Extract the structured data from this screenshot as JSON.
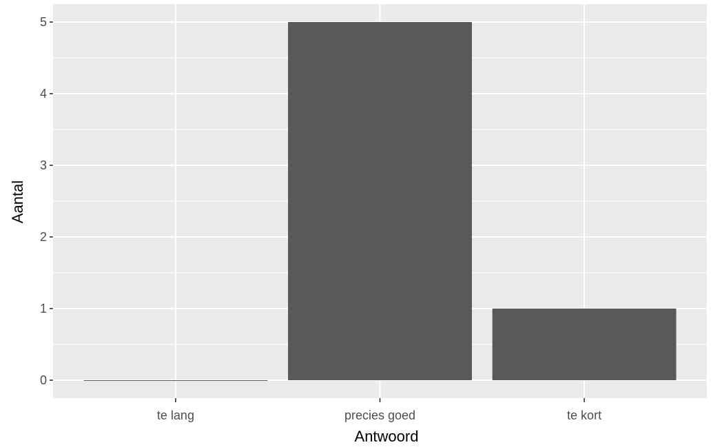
{
  "chart_data": {
    "type": "bar",
    "categories": [
      "te lang",
      "precies goed",
      "te kort"
    ],
    "values": [
      0,
      5,
      1
    ],
    "xlabel": "Antwoord",
    "ylabel": "Aantal",
    "ylim": [
      -0.25,
      5.25
    ],
    "yticks": [
      0,
      1,
      2,
      3,
      4,
      5
    ],
    "grid": true,
    "legend": "none",
    "colors": {
      "panel": "#ebebeb",
      "grid": "#ffffff",
      "bar": "#595959",
      "tick_text": "#4d4d4d",
      "tick_mark": "#333333",
      "title_text": "#000000"
    }
  }
}
